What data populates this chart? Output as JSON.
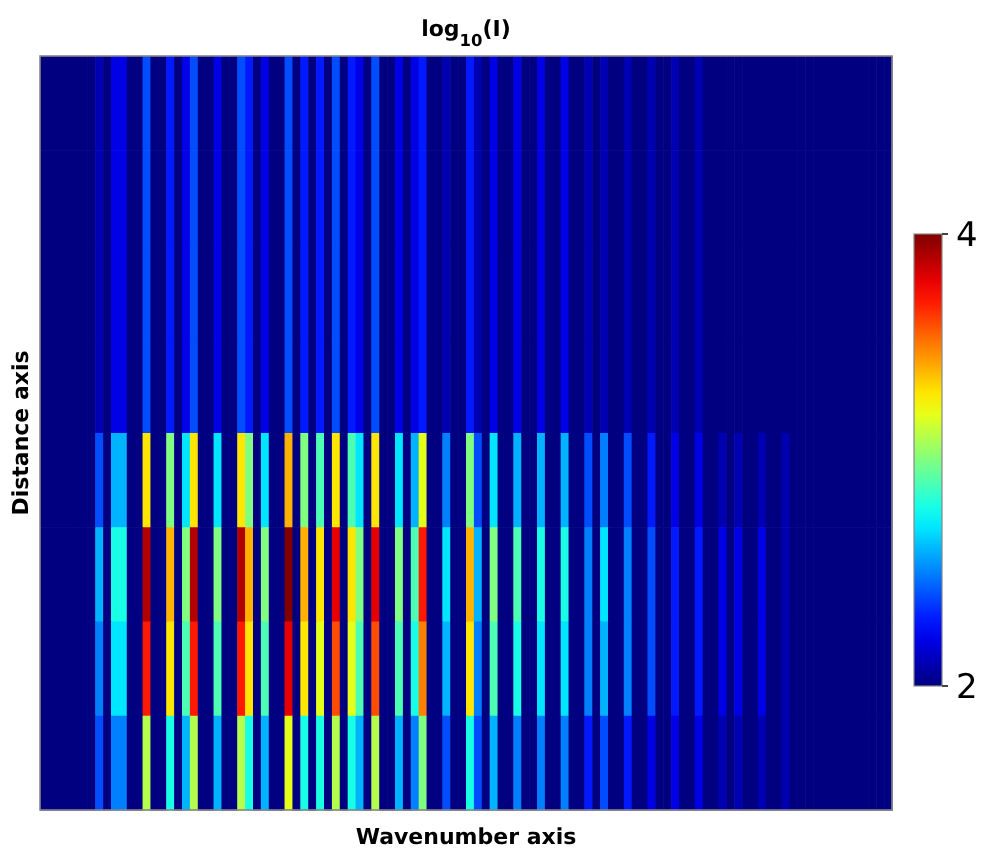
{
  "chart_data": {
    "type": "heatmap",
    "title": "log$_{10}$(I)",
    "xlabel": "Wavenumber axis",
    "ylabel": "Distance axis",
    "categories": [
      null,
      null,
      null,
      null,
      null,
      null,
      null,
      null,
      null,
      null,
      null,
      null,
      null,
      null,
      null,
      null,
      null,
      null,
      null,
      null,
      null,
      null,
      null,
      null,
      null,
      null,
      null,
      null,
      null,
      null,
      null,
      null,
      null,
      null,
      null,
      null,
      null,
      null,
      null,
      null,
      null,
      null,
      null,
      null,
      null,
      null,
      null,
      null,
      null,
      null,
      null,
      null,
      null,
      null,
      null,
      null,
      null,
      null,
      null,
      null,
      null,
      null,
      null,
      null,
      null,
      null,
      null,
      null,
      null,
      null,
      null,
      null,
      null,
      null,
      null,
      null,
      null,
      null,
      null,
      null,
      null,
      null,
      null,
      null,
      null,
      null,
      null,
      null,
      null,
      null,
      null,
      null,
      null,
      null,
      null,
      null,
      null,
      null,
      null,
      null,
      null,
      null,
      null,
      null,
      null,
      null,
      null,
      null
    ],
    "y_categories": [
      null,
      null,
      null,
      null,
      null,
      null,
      null,
      null
    ],
    "cells": [
      [
        2,
        2,
        2,
        2,
        2,
        2,
        2,
        2.1,
        2,
        2.2,
        2.2,
        2,
        2,
        2.4,
        2,
        2,
        2.3,
        2,
        2.2,
        2.4,
        2,
        2,
        2.2,
        2,
        2,
        2.4,
        2.3,
        2,
        2.2,
        2,
        2,
        2.4,
        2,
        2.3,
        2,
        2.3,
        2,
        2.4,
        2,
        2.3,
        2.2,
        2,
        2.4,
        2,
        2,
        2.2,
        2,
        2.2,
        2.3,
        2,
        2,
        2.1,
        2,
        2,
        2.3,
        2.1,
        2,
        2.2,
        2,
        2,
        2.2,
        2,
        2,
        2.2,
        2,
        2,
        2.2,
        2,
        2,
        2.1,
        2,
        2.1,
        2,
        2,
        2.1,
        2,
        2,
        2.1,
        2,
        2,
        2.1,
        2,
        2,
        2.1,
        2,
        2,
        2,
        2,
        2,
        2,
        2,
        2,
        2,
        2,
        2,
        2,
        2,
        2,
        2,
        2,
        2,
        2,
        2,
        2,
        2,
        2,
        2,
        2
      ],
      [
        2,
        2,
        2,
        2,
        2,
        2,
        2,
        2.1,
        2,
        2.2,
        2.2,
        2,
        2,
        2.4,
        2,
        2,
        2.3,
        2,
        2.2,
        2.4,
        2,
        2,
        2.2,
        2,
        2,
        2.4,
        2.3,
        2,
        2.2,
        2,
        2,
        2.4,
        2,
        2.3,
        2,
        2.3,
        2,
        2.4,
        2,
        2.3,
        2.2,
        2,
        2.4,
        2,
        2,
        2.2,
        2,
        2.2,
        2.3,
        2,
        2,
        2.1,
        2,
        2,
        2.3,
        2.1,
        2,
        2.2,
        2,
        2,
        2.2,
        2,
        2,
        2.2,
        2,
        2,
        2.2,
        2,
        2,
        2.1,
        2,
        2.1,
        2,
        2,
        2.1,
        2,
        2,
        2.1,
        2,
        2,
        2.1,
        2,
        2,
        2.1,
        2,
        2,
        2,
        2,
        2,
        2,
        2,
        2,
        2,
        2,
        2,
        2,
        2,
        2,
        2,
        2,
        2,
        2,
        2,
        2,
        2,
        2,
        2,
        2
      ],
      [
        2,
        2,
        2,
        2,
        2,
        2,
        2,
        2.1,
        2,
        2.2,
        2.2,
        2,
        2,
        2.4,
        2,
        2,
        2.3,
        2,
        2.2,
        2.4,
        2,
        2,
        2.2,
        2,
        2,
        2.4,
        2.3,
        2,
        2.2,
        2,
        2,
        2.4,
        2,
        2.3,
        2,
        2.3,
        2,
        2.4,
        2,
        2.3,
        2.2,
        2,
        2.4,
        2,
        2,
        2.2,
        2,
        2.2,
        2.3,
        2,
        2,
        2.1,
        2,
        2,
        2.3,
        2.1,
        2,
        2.2,
        2,
        2,
        2.2,
        2,
        2,
        2.2,
        2,
        2,
        2.2,
        2,
        2,
        2.1,
        2,
        2.1,
        2,
        2,
        2.1,
        2,
        2,
        2.1,
        2,
        2,
        2.1,
        2,
        2,
        2.1,
        2,
        2,
        2,
        2,
        2,
        2,
        2,
        2,
        2,
        2,
        2,
        2,
        2,
        2,
        2,
        2,
        2,
        2,
        2,
        2,
        2,
        2,
        2,
        2
      ],
      [
        2,
        2,
        2,
        2,
        2,
        2,
        2,
        2.1,
        2,
        2.2,
        2.2,
        2,
        2,
        2.4,
        2,
        2,
        2.3,
        2,
        2.2,
        2.4,
        2,
        2,
        2.2,
        2,
        2,
        2.4,
        2.3,
        2,
        2.2,
        2,
        2,
        2.4,
        2,
        2.3,
        2,
        2.3,
        2,
        2.4,
        2,
        2.3,
        2.2,
        2,
        2.4,
        2,
        2,
        2.2,
        2,
        2.2,
        2.3,
        2,
        2,
        2.1,
        2,
        2,
        2.3,
        2.1,
        2,
        2.2,
        2,
        2,
        2.2,
        2,
        2,
        2.2,
        2,
        2,
        2.2,
        2,
        2,
        2.1,
        2,
        2.1,
        2,
        2,
        2.1,
        2,
        2,
        2.1,
        2,
        2,
        2.1,
        2,
        2,
        2.1,
        2,
        2,
        2,
        2,
        2,
        2,
        2,
        2,
        2,
        2,
        2,
        2,
        2,
        2,
        2,
        2,
        2,
        2,
        2,
        2,
        2,
        2,
        2,
        2
      ],
      [
        2,
        2,
        2,
        2,
        2,
        2,
        2,
        2.4,
        2,
        2.6,
        2.6,
        2,
        2,
        3.3,
        2,
        2,
        3,
        2,
        2.7,
        3.3,
        2,
        2,
        2.7,
        2,
        2,
        3.3,
        3,
        2,
        2.7,
        2,
        2,
        3.4,
        2,
        3,
        2,
        2.9,
        2,
        3.3,
        2,
        2.9,
        2.7,
        2,
        3.3,
        2,
        2,
        2.7,
        2,
        2.6,
        3.2,
        2,
        2,
        2.5,
        2,
        2,
        3,
        2.4,
        2,
        2.7,
        2,
        2,
        2.6,
        2,
        2,
        2.6,
        2,
        2,
        2.6,
        2,
        2,
        2.4,
        2,
        2.5,
        2,
        2,
        2.4,
        2,
        2,
        2.3,
        2,
        2,
        2.2,
        2,
        2,
        2.2,
        2,
        2,
        2.1,
        2,
        2.1,
        2,
        2,
        2.1,
        2,
        2,
        2.1,
        2,
        2,
        2,
        2,
        2,
        2,
        2,
        2,
        2,
        2,
        2,
        2,
        2
      ],
      [
        2,
        2,
        2,
        2,
        2,
        2,
        2,
        2.6,
        2,
        2.8,
        2.8,
        2,
        2,
        3.9,
        2,
        2,
        3.4,
        2,
        3,
        3.9,
        2,
        2,
        3,
        2,
        2,
        3.9,
        3.4,
        2,
        3,
        2,
        2,
        4,
        2,
        3.4,
        2,
        3.3,
        2,
        3.8,
        2,
        3.3,
        3,
        2,
        3.8,
        2,
        2,
        3,
        2,
        2.9,
        3.7,
        2,
        2,
        2.7,
        2,
        2,
        3.4,
        2.6,
        2,
        3,
        2,
        2,
        2.9,
        2,
        2,
        2.8,
        2,
        2,
        2.8,
        2,
        2,
        2.5,
        2,
        2.7,
        2,
        2,
        2.5,
        2,
        2,
        2.4,
        2,
        2,
        2.3,
        2,
        2,
        2.3,
        2,
        2,
        2.2,
        2,
        2.2,
        2,
        2,
        2.2,
        2,
        2,
        2.1,
        2,
        2,
        2,
        2,
        2,
        2,
        2,
        2,
        2,
        2,
        2,
        2,
        2
      ],
      [
        2,
        2,
        2,
        2,
        2,
        2,
        2,
        2.5,
        2,
        2.7,
        2.7,
        2,
        2,
        3.7,
        2,
        2,
        3.3,
        2,
        2.9,
        3.7,
        2,
        2,
        2.9,
        2,
        2,
        3.7,
        3.3,
        2,
        2.9,
        2,
        2,
        3.8,
        2,
        3.3,
        2,
        3.2,
        2,
        3.6,
        2,
        3.2,
        2.9,
        2,
        3.6,
        2,
        2,
        2.9,
        2,
        2.8,
        3.5,
        2,
        2,
        2.6,
        2,
        2,
        3.3,
        2.5,
        2,
        2.9,
        2,
        2,
        2.8,
        2,
        2,
        2.7,
        2,
        2,
        2.7,
        2,
        2,
        2.5,
        2,
        2.6,
        2,
        2,
        2.5,
        2,
        2,
        2.4,
        2,
        2,
        2.3,
        2,
        2,
        2.3,
        2,
        2,
        2.2,
        2,
        2.2,
        2,
        2,
        2.2,
        2,
        2,
        2.1,
        2,
        2,
        2,
        2,
        2,
        2,
        2,
        2,
        2,
        2,
        2,
        2,
        2
      ],
      [
        2,
        2,
        2,
        2,
        2,
        2,
        2,
        2.4,
        2,
        2.5,
        2.5,
        2,
        2,
        3.1,
        2,
        2,
        2.8,
        2,
        2.6,
        3.1,
        2,
        2,
        2.6,
        2,
        2,
        3.1,
        2.8,
        2,
        2.6,
        2,
        2,
        3.2,
        2,
        2.8,
        2,
        2.8,
        2,
        3.1,
        2,
        2.8,
        2.6,
        2,
        3.1,
        2,
        2,
        2.6,
        2,
        2.5,
        3,
        2,
        2,
        2.4,
        2,
        2,
        2.8,
        2.4,
        2,
        2.6,
        2,
        2,
        2.5,
        2,
        2,
        2.5,
        2,
        2,
        2.5,
        2,
        2,
        2.3,
        2,
        2.4,
        2,
        2,
        2.3,
        2,
        2,
        2.2,
        2,
        2,
        2.2,
        2,
        2,
        2.2,
        2,
        2,
        2.1,
        2,
        2.1,
        2,
        2,
        2.1,
        2,
        2,
        2.1,
        2,
        2,
        2,
        2,
        2,
        2,
        2,
        2,
        2,
        2,
        2,
        2,
        2
      ]
    ],
    "clim": [
      2,
      4
    ],
    "cticks": [
      2,
      4
    ]
  }
}
